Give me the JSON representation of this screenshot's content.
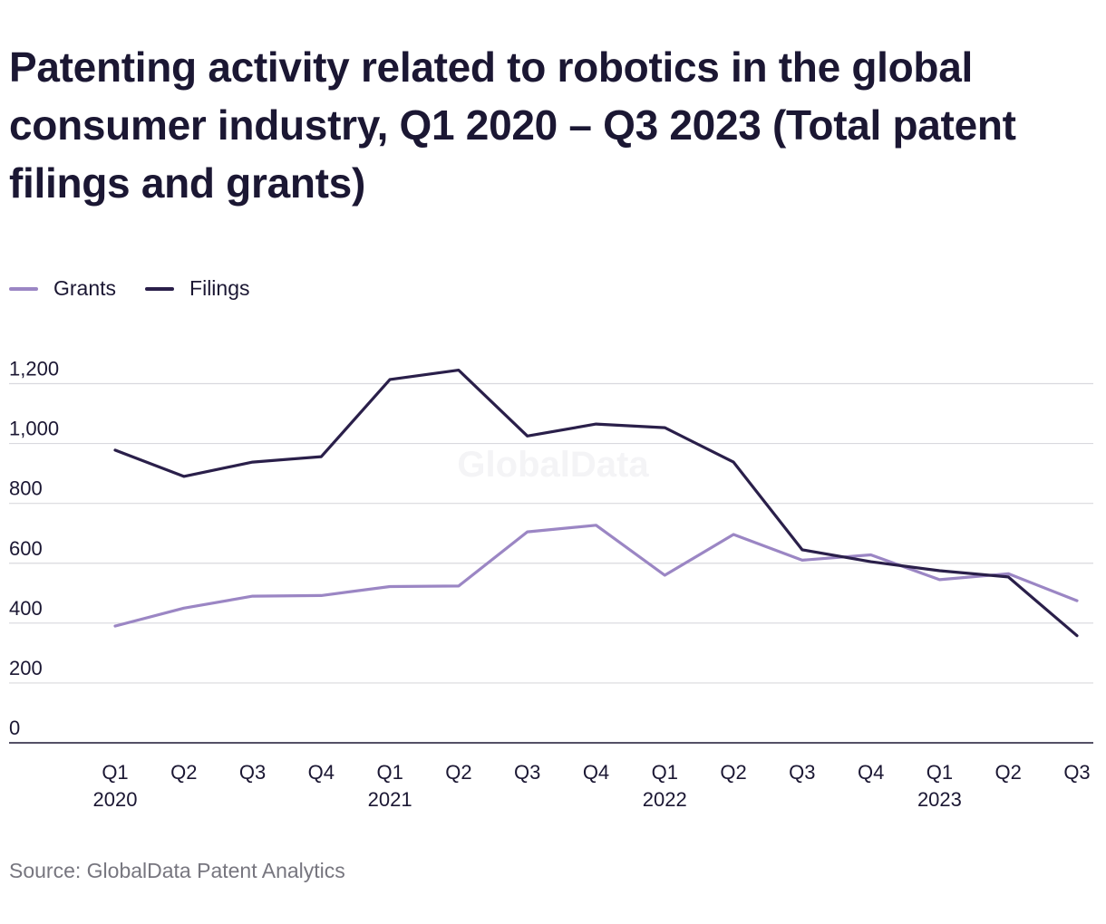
{
  "title": "Patenting activity related to robotics in the global consumer industry, Q1 2020 – Q3 2023 (Total patent filings and grants)",
  "source": "Source: GlobalData Patent Analytics",
  "watermark": "GlobalData",
  "legend": [
    {
      "label": "Grants",
      "color": "#9b86c4"
    },
    {
      "label": "Filings",
      "color": "#2a1f4a"
    }
  ],
  "chart_data": {
    "type": "line",
    "title": "Patenting activity related to robotics in the global consumer industry, Q1 2020 – Q3 2023 (Total patent filings and grants)",
    "xlabel": "",
    "ylabel": "",
    "categories": [
      "Q1 2020",
      "Q2 2020",
      "Q3 2020",
      "Q4 2020",
      "Q1 2021",
      "Q2 2021",
      "Q3 2021",
      "Q4 2021",
      "Q1 2022",
      "Q2 2022",
      "Q3 2022",
      "Q4 2022",
      "Q1 2023",
      "Q2 2023",
      "Q3 2023"
    ],
    "tick_labels": [
      {
        "quarter": "Q1",
        "year": "2020"
      },
      {
        "quarter": "Q2",
        "year": ""
      },
      {
        "quarter": "Q3",
        "year": ""
      },
      {
        "quarter": "Q4",
        "year": ""
      },
      {
        "quarter": "Q1",
        "year": "2021"
      },
      {
        "quarter": "Q2",
        "year": ""
      },
      {
        "quarter": "Q3",
        "year": ""
      },
      {
        "quarter": "Q4",
        "year": ""
      },
      {
        "quarter": "Q1",
        "year": "2022"
      },
      {
        "quarter": "Q2",
        "year": ""
      },
      {
        "quarter": "Q3",
        "year": ""
      },
      {
        "quarter": "Q4",
        "year": ""
      },
      {
        "quarter": "Q1",
        "year": "2023"
      },
      {
        "quarter": "Q2",
        "year": ""
      },
      {
        "quarter": "Q3",
        "year": ""
      }
    ],
    "series": [
      {
        "name": "Grants",
        "color": "#9b86c4",
        "values": [
          390,
          450,
          490,
          492,
          522,
          524,
          705,
          727,
          560,
          696,
          610,
          628,
          545,
          565,
          475
        ]
      },
      {
        "name": "Filings",
        "color": "#2a1f4a",
        "values": [
          978,
          890,
          938,
          956,
          1214,
          1245,
          1025,
          1065,
          1053,
          938,
          645,
          605,
          575,
          554,
          358
        ]
      }
    ],
    "ylim": [
      0,
      1200
    ],
    "yticks": [
      0,
      200,
      400,
      600,
      800,
      1000,
      1200
    ],
    "ytick_labels": [
      "0",
      "200",
      "400",
      "600",
      "800",
      "1,000",
      "1,200"
    ],
    "grid": true,
    "legend_position": "top-left"
  }
}
